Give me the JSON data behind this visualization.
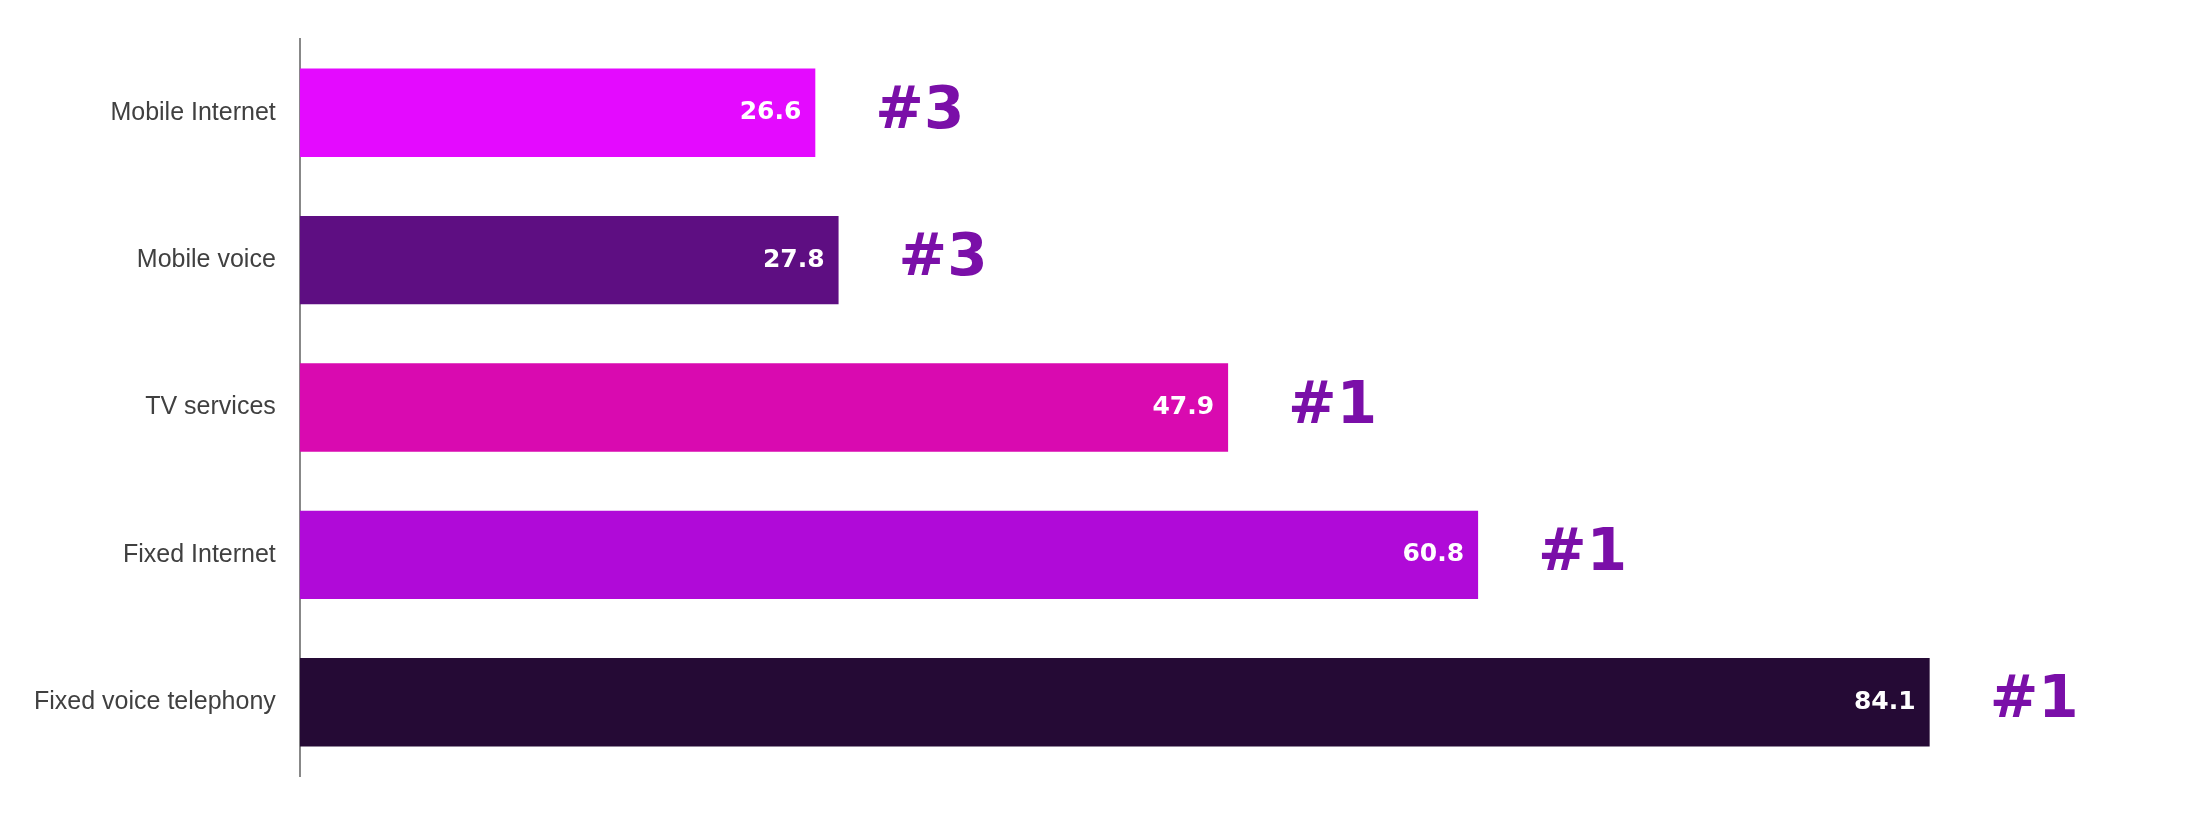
{
  "chart_data": {
    "type": "bar",
    "orientation": "horizontal",
    "categories": [
      "Mobile Internet",
      "Mobile voice",
      "TV services",
      "Fixed Internet",
      "Fixed voice telephony"
    ],
    "values": [
      26.6,
      27.8,
      47.9,
      60.8,
      84.1
    ],
    "colors": [
      "#e40aff",
      "#5e0e82",
      "#d90ab0",
      "#b00ad8",
      "#250a35"
    ],
    "data_labels": true,
    "tick_labels": "y",
    "annotations": [
      {
        "text": "#3",
        "x": 26.6,
        "y": "Mobile Internet"
      },
      {
        "text": "#3",
        "x": 27.8,
        "y": "Mobile voice"
      },
      {
        "text": "#1",
        "x": 47.9,
        "y": "TV services"
      },
      {
        "text": "#1",
        "x": 60.8,
        "y": "Fixed Internet"
      },
      {
        "text": "#1",
        "x": 84.1,
        "y": "Fixed voice telephony"
      }
    ]
  }
}
